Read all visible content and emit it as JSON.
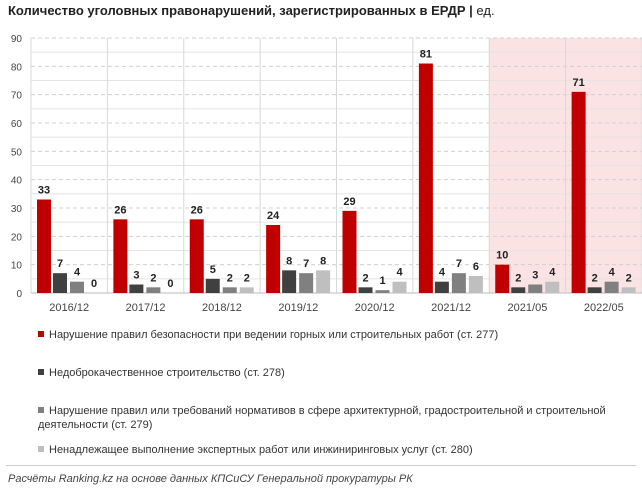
{
  "title": "Количество уголовных правонарушений, зарегистрированных в ЕРДР",
  "unit": "ед.",
  "source": "Расчёты Ranking.kz на основе данных КПСиСУ Генеральной прокуратуры РК",
  "chart_data": {
    "type": "bar",
    "title": "Количество уголовных правонарушений, зарегистрированных в ЕРДР | ед.",
    "categories": [
      "2016/12",
      "2017/12",
      "2018/12",
      "2019/12",
      "2020/12",
      "2021/12",
      "2021/05",
      "2022/05"
    ],
    "highlighted_categories": [
      "2021/05",
      "2022/05"
    ],
    "highlight_color": "#fbe3e4",
    "ylim": [
      0,
      90
    ],
    "yticks": [
      0,
      10,
      20,
      30,
      40,
      50,
      60,
      70,
      80,
      90
    ],
    "grid": true,
    "legend_position": "bottom",
    "series": [
      {
        "name": "Нарушение правил безопасности при ведении горных или строительных работ (ст. 277)",
        "color": "#c00000",
        "values": [
          33,
          26,
          26,
          24,
          29,
          81,
          10,
          71
        ]
      },
      {
        "name": "Недоброкачественное строительство (ст. 278)",
        "color": "#404040",
        "values": [
          7,
          3,
          5,
          8,
          2,
          4,
          2,
          2
        ]
      },
      {
        "name": "Нарушение правил или требований нормативов в сфере архитектурной, градостроительной и строительной деятельности (ст. 279)",
        "color": "#808080",
        "values": [
          4,
          2,
          2,
          7,
          1,
          7,
          3,
          4
        ]
      },
      {
        "name": "Ненадлежащее выполнение экспертных работ или инжиниринговых услуг (ст. 280)",
        "color": "#bfbfbf",
        "values": [
          0,
          0,
          2,
          8,
          4,
          6,
          4,
          2
        ]
      }
    ]
  }
}
